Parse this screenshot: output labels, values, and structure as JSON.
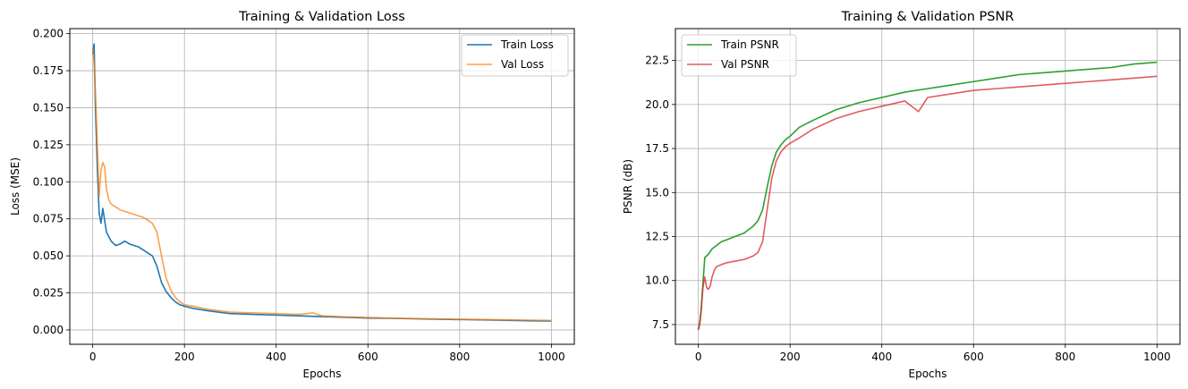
{
  "chart_data": [
    {
      "type": "line",
      "title": "Training & Validation Loss",
      "xlabel": "Epochs",
      "ylabel": "Loss (MSE)",
      "xlim": [
        -50,
        1050
      ],
      "ylim": [
        -0.0097,
        0.2034
      ],
      "xticks": [
        0,
        200,
        400,
        600,
        800,
        1000
      ],
      "xtick_labels": [
        "0",
        "200",
        "400",
        "600",
        "800",
        "1000"
      ],
      "yticks": [
        0.0,
        0.025,
        0.05,
        0.075,
        0.1,
        0.125,
        0.15,
        0.175,
        0.2
      ],
      "ytick_labels": [
        "0.000",
        "0.025",
        "0.050",
        "0.075",
        "0.100",
        "0.125",
        "0.150",
        "0.175",
        "0.200"
      ],
      "grid": true,
      "legend_position": "top-right",
      "series": [
        {
          "name": "Train Loss",
          "color": "#1f77b4",
          "x": [
            0,
            3,
            6,
            10,
            14,
            18,
            22,
            30,
            40,
            50,
            60,
            70,
            80,
            90,
            100,
            110,
            120,
            130,
            140,
            150,
            160,
            170,
            180,
            190,
            200,
            220,
            250,
            300,
            350,
            400,
            450,
            500,
            550,
            600,
            650,
            700,
            750,
            800,
            850,
            900,
            950,
            1000
          ],
          "y": [
            0.186,
            0.193,
            0.15,
            0.11,
            0.079,
            0.072,
            0.082,
            0.066,
            0.06,
            0.057,
            0.058,
            0.06,
            0.058,
            0.057,
            0.056,
            0.054,
            0.052,
            0.05,
            0.043,
            0.032,
            0.026,
            0.022,
            0.019,
            0.017,
            0.016,
            0.0145,
            0.013,
            0.011,
            0.0105,
            0.01,
            0.0095,
            0.009,
            0.0085,
            0.008,
            0.0078,
            0.0075,
            0.0072,
            0.007,
            0.0068,
            0.0065,
            0.0062,
            0.006
          ]
        },
        {
          "name": "Val Loss",
          "color": "#ff7f0e",
          "x": [
            0,
            3,
            6,
            10,
            14,
            18,
            22,
            26,
            30,
            35,
            40,
            50,
            60,
            70,
            80,
            90,
            100,
            110,
            120,
            130,
            140,
            150,
            160,
            170,
            180,
            190,
            200,
            220,
            250,
            300,
            350,
            400,
            450,
            480,
            500,
            550,
            600,
            650,
            700,
            750,
            800,
            850,
            900,
            950,
            1000
          ],
          "y": [
            0.19,
            0.18,
            0.16,
            0.125,
            0.09,
            0.108,
            0.113,
            0.11,
            0.095,
            0.088,
            0.085,
            0.083,
            0.081,
            0.08,
            0.079,
            0.078,
            0.077,
            0.076,
            0.074,
            0.072,
            0.066,
            0.05,
            0.035,
            0.027,
            0.022,
            0.019,
            0.017,
            0.016,
            0.014,
            0.012,
            0.0115,
            0.011,
            0.0105,
            0.0115,
            0.0095,
            0.0088,
            0.0084,
            0.008,
            0.0077,
            0.0075,
            0.0072,
            0.007,
            0.0068,
            0.0066,
            0.0064
          ]
        }
      ]
    },
    {
      "type": "line",
      "title": "Training & Validation PSNR",
      "xlabel": "Epochs",
      "ylabel": "PSNR (dB)",
      "xlim": [
        -50,
        1050
      ],
      "ylim": [
        6.38,
        24.31
      ],
      "xticks": [
        0,
        200,
        400,
        600,
        800,
        1000
      ],
      "xtick_labels": [
        "0",
        "200",
        "400",
        "600",
        "800",
        "1000"
      ],
      "yticks": [
        7.5,
        10.0,
        12.5,
        15.0,
        17.5,
        20.0,
        22.5
      ],
      "ytick_labels": [
        "7.5",
        "10.0",
        "12.5",
        "15.0",
        "17.5",
        "20.0",
        "22.5"
      ],
      "grid": true,
      "legend_position": "top-left",
      "series": [
        {
          "name": "Train PSNR",
          "color": "#2ca02c",
          "x": [
            0,
            3,
            6,
            10,
            14,
            18,
            22,
            30,
            40,
            50,
            60,
            70,
            80,
            90,
            100,
            110,
            120,
            130,
            140,
            150,
            160,
            170,
            180,
            190,
            200,
            220,
            250,
            300,
            350,
            400,
            450,
            500,
            550,
            600,
            650,
            700,
            750,
            800,
            850,
            900,
            950,
            1000
          ],
          "y": [
            7.2,
            7.6,
            8.3,
            9.8,
            11.3,
            11.4,
            11.5,
            11.8,
            12.0,
            12.2,
            12.3,
            12.4,
            12.5,
            12.6,
            12.7,
            12.9,
            13.1,
            13.4,
            14.0,
            15.3,
            16.5,
            17.3,
            17.7,
            18.0,
            18.2,
            18.7,
            19.1,
            19.7,
            20.1,
            20.4,
            20.7,
            20.9,
            21.1,
            21.3,
            21.5,
            21.7,
            21.8,
            21.9,
            22.0,
            22.1,
            22.3,
            22.4
          ]
        },
        {
          "name": "Val PSNR",
          "color": "#d62728",
          "x": [
            0,
            3,
            6,
            10,
            14,
            18,
            22,
            26,
            30,
            35,
            40,
            50,
            60,
            70,
            80,
            90,
            100,
            110,
            120,
            130,
            140,
            150,
            160,
            170,
            180,
            190,
            200,
            220,
            250,
            300,
            350,
            400,
            450,
            480,
            500,
            550,
            600,
            650,
            700,
            750,
            800,
            850,
            900,
            950,
            1000
          ],
          "y": [
            7.2,
            7.5,
            8.2,
            9.6,
            10.2,
            9.6,
            9.5,
            9.7,
            10.2,
            10.6,
            10.8,
            10.9,
            11.0,
            11.05,
            11.1,
            11.15,
            11.2,
            11.3,
            11.4,
            11.6,
            12.2,
            14.0,
            15.8,
            16.8,
            17.3,
            17.6,
            17.8,
            18.1,
            18.6,
            19.2,
            19.6,
            19.9,
            20.2,
            19.6,
            20.4,
            20.6,
            20.8,
            20.9,
            21.0,
            21.1,
            21.2,
            21.3,
            21.4,
            21.5,
            21.6
          ]
        }
      ]
    }
  ]
}
